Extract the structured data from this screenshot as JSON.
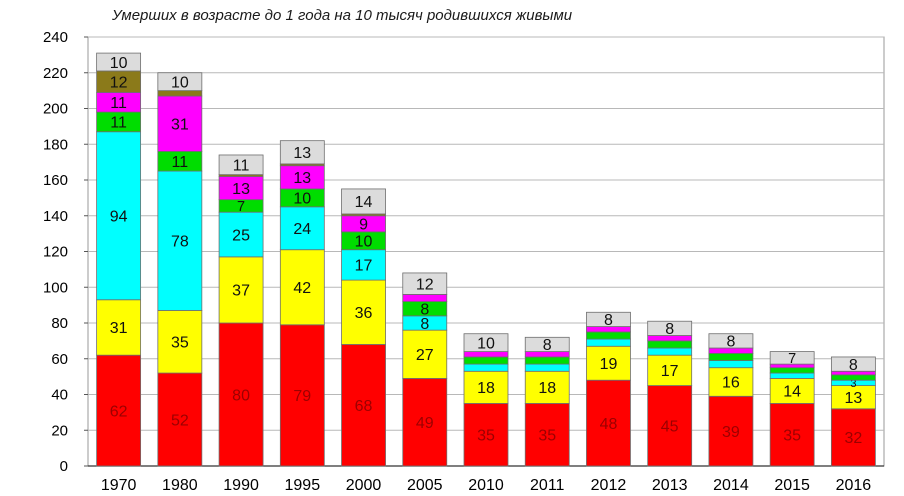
{
  "chart_data": {
    "type": "bar",
    "stacked": true,
    "title": "Умерших в возрасте до 1 года на 10 тысяч родившихся живыми",
    "xlabel": "",
    "ylabel": "",
    "ylim": [
      0,
      240
    ],
    "yticks": [
      0,
      20,
      40,
      60,
      80,
      100,
      120,
      140,
      160,
      180,
      200,
      220,
      240
    ],
    "grid": true,
    "legend": "none",
    "categories": [
      "1970",
      "1980",
      "1990",
      "1995",
      "2000",
      "2005",
      "2010",
      "2011",
      "2012",
      "2013",
      "2014",
      "2015",
      "2016"
    ],
    "series": [
      {
        "color": "#ff0000",
        "values": [
          62,
          52,
          80,
          79,
          68,
          49,
          35,
          35,
          48,
          45,
          39,
          35,
          32
        ],
        "labels": [
          "62",
          "52",
          "80",
          "79",
          "68",
          "49",
          "35",
          "35",
          "48",
          "45",
          "39",
          "35",
          "32"
        ]
      },
      {
        "color": "#ffff00",
        "values": [
          31,
          35,
          37,
          42,
          36,
          27,
          18,
          18,
          19,
          17,
          16,
          14,
          13
        ],
        "labels": [
          "31",
          "35",
          "37",
          "42",
          "36",
          "27",
          "18",
          "18",
          "19",
          "17",
          "16",
          "14",
          "13"
        ]
      },
      {
        "color": "#00ffff",
        "values": [
          94,
          78,
          25,
          24,
          17,
          8,
          4,
          4,
          4,
          4,
          4,
          3,
          3
        ],
        "labels": [
          "94",
          "78",
          "25",
          "24",
          "17",
          "8",
          "",
          "",
          "",
          "",
          "",
          "",
          "3"
        ]
      },
      {
        "color": "#00dd00",
        "values": [
          11,
          11,
          7,
          10,
          10,
          8,
          4,
          4,
          4,
          4,
          4,
          3,
          3
        ],
        "labels": [
          "11",
          "11",
          "7",
          "10",
          "10",
          "8",
          "",
          "",
          "",
          "",
          "",
          "",
          ""
        ]
      },
      {
        "color": "#ff00ff",
        "values": [
          11,
          31,
          13,
          13,
          9,
          4,
          3,
          3,
          3,
          3,
          3,
          2,
          2
        ],
        "labels": [
          "11",
          "31",
          "13",
          "13",
          "9",
          "",
          "",
          "",
          "",
          "",
          "",
          "",
          ""
        ]
      },
      {
        "color": "#8b7a1a",
        "values": [
          12,
          3,
          1,
          1,
          1,
          0,
          0,
          0,
          0,
          0,
          0,
          0,
          0
        ],
        "labels": [
          "12",
          "",
          "",
          "",
          "",
          "",
          "",
          "",
          "",
          "",
          "",
          "",
          ""
        ]
      },
      {
        "color": "#dcdcdc",
        "values": [
          10,
          10,
          11,
          13,
          14,
          12,
          10,
          8,
          8,
          8,
          8,
          7,
          8
        ],
        "labels": [
          "10",
          "10",
          "11",
          "13",
          "14",
          "12",
          "10",
          "8",
          "8",
          "8",
          "8",
          "7",
          "8"
        ]
      }
    ]
  }
}
